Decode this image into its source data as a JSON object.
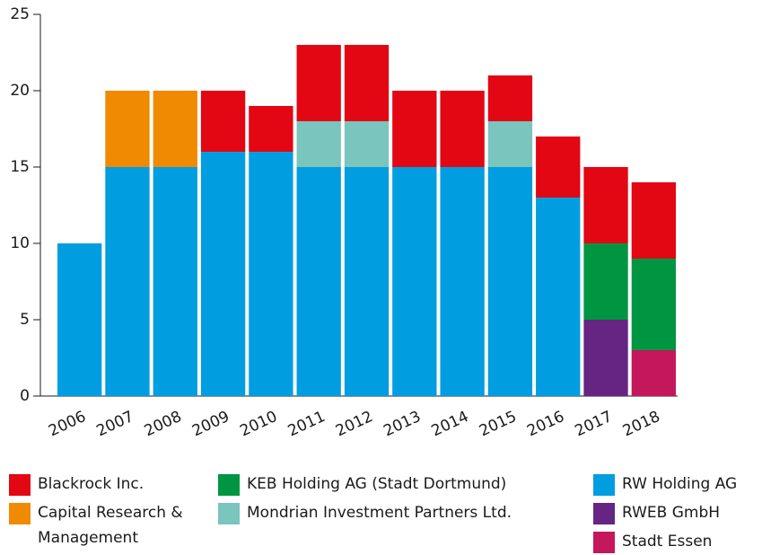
{
  "chart_data": {
    "type": "stacked_bar",
    "categories": [
      "2006",
      "2007",
      "2008",
      "2009",
      "2010",
      "2011",
      "2012",
      "2013",
      "2014",
      "2015",
      "2016",
      "2017",
      "2018"
    ],
    "series": [
      {
        "name": "Blackrock Inc.",
        "color": "#e30613",
        "values": [
          null,
          null,
          null,
          4,
          3,
          5,
          5,
          5,
          5,
          3,
          4,
          5,
          5
        ]
      },
      {
        "name": "Capital Research & Management",
        "color": "#f08a00",
        "values": [
          null,
          5,
          5,
          null,
          null,
          null,
          null,
          null,
          null,
          null,
          null,
          null,
          null
        ]
      },
      {
        "name": "KEB Holding AG (Stadt Dortmund)",
        "color": "#009540",
        "values": [
          null,
          null,
          null,
          null,
          null,
          null,
          null,
          null,
          null,
          null,
          null,
          5,
          6
        ]
      },
      {
        "name": "Mondrian Investment Partners Ltd.",
        "color": "#7ac5bd",
        "values": [
          null,
          null,
          null,
          null,
          null,
          3,
          3,
          null,
          null,
          3,
          null,
          null,
          null
        ]
      },
      {
        "name": "RW Holding AG",
        "color": "#009ee0",
        "values": [
          10,
          15,
          15,
          16,
          16,
          15,
          15,
          15,
          15,
          15,
          13,
          null,
          null
        ]
      },
      {
        "name": "RWEB GmbH",
        "color": "#662483",
        "values": [
          null,
          null,
          null,
          null,
          null,
          null,
          null,
          null,
          null,
          null,
          null,
          5,
          null
        ]
      },
      {
        "name": "Stadt Essen",
        "color": "#c4175c",
        "values": [
          null,
          null,
          null,
          null,
          null,
          null,
          null,
          null,
          null,
          null,
          null,
          null,
          3
        ]
      }
    ],
    "ylim": [
      0,
      25
    ],
    "yticks": [
      0,
      5,
      10,
      15,
      20,
      25
    ]
  }
}
